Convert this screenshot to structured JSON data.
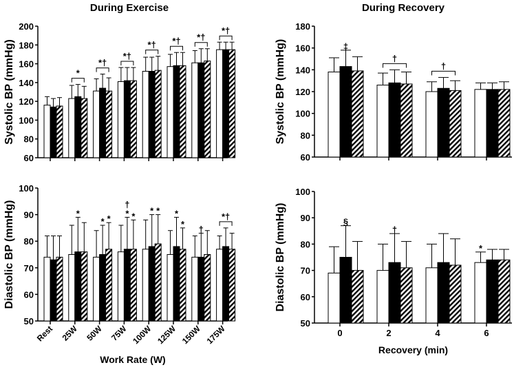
{
  "titles": {
    "exercise": "During Exercise",
    "recovery": "During Recovery"
  },
  "colors": {
    "series": [
      "#ffffff",
      "#000000",
      "hatched"
    ],
    "stroke": "#000000"
  },
  "chart_data": [
    {
      "id": "exercise-systolic",
      "type": "bar",
      "title": "During Exercise",
      "ylabel": "Systolic BP (mmHg)",
      "xlabel": "",
      "ylim": [
        60,
        200
      ],
      "yticks": [
        60,
        80,
        100,
        120,
        140,
        160,
        180,
        200
      ],
      "categories": [
        "Rest",
        "25W",
        "50W",
        "75W",
        "100W",
        "125W",
        "150W",
        "175W"
      ],
      "show_category_labels": false,
      "series": [
        {
          "values": [
            116,
            123,
            131,
            141,
            152,
            157,
            161,
            175
          ],
          "error": [
            125,
            137,
            144,
            156,
            167,
            170,
            174,
            183
          ]
        },
        {
          "values": [
            114,
            125,
            134,
            142,
            152,
            158,
            161,
            175
          ],
          "error": [
            123,
            138,
            149,
            156,
            167,
            172,
            176,
            183
          ]
        },
        {
          "values": [
            115,
            123,
            131,
            142,
            153,
            158,
            163,
            175
          ],
          "error": [
            124,
            136,
            145,
            156,
            168,
            172,
            176,
            183
          ]
        }
      ],
      "annotations": [
        {
          "cat": 1,
          "text": "*",
          "bracket": true
        },
        {
          "cat": 2,
          "text": "*†",
          "bracket": true
        },
        {
          "cat": 3,
          "text": "*†",
          "bracket": true
        },
        {
          "cat": 4,
          "text": "*†",
          "bracket": true
        },
        {
          "cat": 5,
          "text": "*†",
          "bracket": true
        },
        {
          "cat": 6,
          "text": "*†",
          "bracket": true
        },
        {
          "cat": 7,
          "text": "*†",
          "bracket": true
        }
      ]
    },
    {
      "id": "exercise-diastolic",
      "type": "bar",
      "title": "",
      "ylabel": "Diastolic BP (mmHg)",
      "xlabel": "Work Rate (W)",
      "ylim": [
        50,
        100
      ],
      "yticks": [
        50,
        60,
        70,
        80,
        90,
        100
      ],
      "categories": [
        "Rest",
        "25W",
        "50W",
        "75W",
        "100W",
        "125W",
        "150W",
        "175W"
      ],
      "show_category_labels": true,
      "series": [
        {
          "values": [
            74,
            75,
            74,
            76,
            77,
            75,
            74,
            77
          ],
          "error": [
            82,
            86,
            84,
            86,
            88,
            84,
            82,
            82
          ]
        },
        {
          "values": [
            73,
            76,
            75,
            77,
            78,
            78,
            74,
            78
          ],
          "error": [
            82,
            89,
            86,
            89,
            90,
            89,
            83,
            85
          ]
        },
        {
          "values": [
            74,
            76,
            77,
            77,
            79,
            77,
            75,
            77
          ],
          "error": [
            82,
            87,
            87,
            88,
            90,
            85,
            84,
            83
          ]
        }
      ],
      "annotations": [
        {
          "cat": 1,
          "bar": 1,
          "text": "*"
        },
        {
          "cat": 2,
          "bar": 1,
          "text": "*"
        },
        {
          "cat": 2,
          "bar": 2,
          "text": "*"
        },
        {
          "cat": 3,
          "bar": 1,
          "text": "*"
        },
        {
          "cat": 3,
          "bar": 2,
          "text": "*"
        },
        {
          "cat": 3,
          "bar": 1,
          "text": "†",
          "level": 1
        },
        {
          "cat": 4,
          "bar": 1,
          "text": "*"
        },
        {
          "cat": 4,
          "bar": 2,
          "text": "*"
        },
        {
          "cat": 5,
          "bar": 1,
          "text": "*"
        },
        {
          "cat": 5,
          "bar": 2,
          "text": "*"
        },
        {
          "cat": 6,
          "bar": 1,
          "text": "†"
        },
        {
          "cat": 7,
          "text": "*†",
          "bracket": true
        }
      ]
    },
    {
      "id": "recovery-systolic",
      "type": "bar",
      "title": "During Recovery",
      "ylabel": "Systolic BP (mmHg)",
      "xlabel": "",
      "ylim": [
        60,
        180
      ],
      "yticks": [
        60,
        80,
        100,
        120,
        140,
        160,
        180
      ],
      "categories": [
        "0",
        "2",
        "4",
        "6"
      ],
      "show_category_labels": false,
      "series": [
        {
          "values": [
            138,
            126,
            120,
            122
          ],
          "error": [
            151,
            137,
            129,
            128
          ]
        },
        {
          "values": [
            143,
            128,
            123,
            122
          ],
          "error": [
            158,
            140,
            133,
            128
          ]
        },
        {
          "values": [
            139,
            127,
            121,
            122
          ],
          "error": [
            152,
            138,
            130,
            129
          ]
        }
      ],
      "annotations": [
        {
          "cat": 0,
          "bar": 1,
          "text": "‡"
        },
        {
          "cat": 1,
          "text": "†",
          "bracket": true
        },
        {
          "cat": 2,
          "text": "†",
          "bracket": true
        }
      ]
    },
    {
      "id": "recovery-diastolic",
      "type": "bar",
      "title": "",
      "ylabel": "Diastolic BP (mmHg)",
      "xlabel": "Recovery (min)",
      "ylim": [
        50,
        100
      ],
      "yticks": [
        50,
        60,
        70,
        80,
        90,
        100
      ],
      "categories": [
        "0",
        "2",
        "4",
        "6"
      ],
      "show_category_labels": true,
      "series": [
        {
          "values": [
            69,
            70,
            71,
            73
          ],
          "error": [
            79,
            80,
            80,
            77
          ]
        },
        {
          "values": [
            75,
            73,
            73,
            74
          ],
          "error": [
            87,
            84,
            84,
            78
          ]
        },
        {
          "values": [
            70,
            71,
            72,
            74
          ],
          "error": [
            81,
            81,
            82,
            78
          ]
        }
      ],
      "annotations": [
        {
          "cat": 0,
          "bar": 1,
          "text": "§"
        },
        {
          "cat": 1,
          "bar": 1,
          "text": "†"
        },
        {
          "cat": 3,
          "bar": 0,
          "text": "*"
        }
      ]
    }
  ]
}
